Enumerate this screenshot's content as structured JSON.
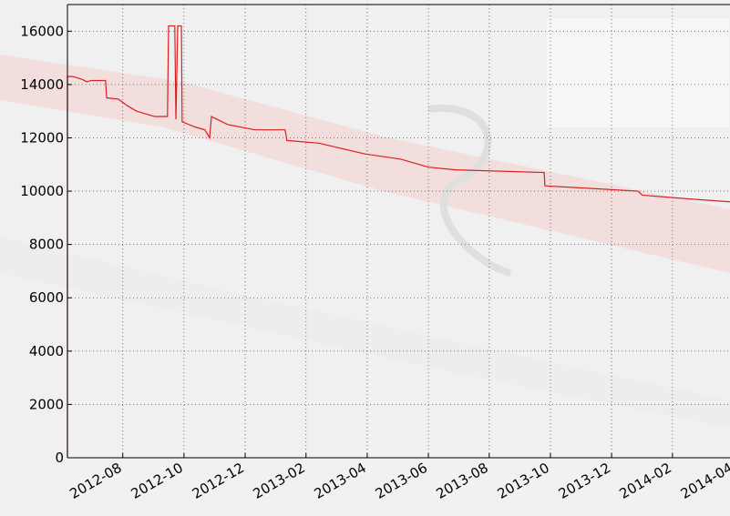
{
  "chart_data": {
    "type": "line",
    "x": [
      2012.432,
      2012.432,
      2012.447,
      2012.471,
      2012.486,
      2012.496,
      2012.536,
      2012.539,
      2012.571,
      2012.596,
      2012.621,
      2012.67,
      2012.705,
      2012.708,
      2012.725,
      2012.728,
      2012.733,
      2012.743,
      2012.745,
      2012.782,
      2012.807,
      2012.82,
      2012.825,
      2012.869,
      2012.944,
      2013.026,
      2013.031,
      2013.118,
      2013.243,
      2013.342,
      2013.417,
      2013.491,
      2013.733,
      2013.735,
      2013.864,
      2013.989,
      2014.001,
      2014.138,
      2014.24
    ],
    "series": [
      {
        "name": "value",
        "color": "#d62020",
        "values": [
          0,
          14300,
          14300,
          14200,
          14100,
          14150,
          14150,
          13500,
          13450,
          13200,
          13000,
          12800,
          12800,
          16200,
          16200,
          12700,
          16200,
          16200,
          12600,
          12400,
          12300,
          12000,
          12800,
          12500,
          12300,
          12300,
          11900,
          11800,
          11400,
          11200,
          10900,
          10800,
          10700,
          10200,
          10100,
          10000,
          9850,
          9700,
          9600
        ]
      }
    ],
    "xlim": [
      2012.432,
      2014.25
    ],
    "xticks": [
      {
        "value": 2012.583,
        "label": "2012-08"
      },
      {
        "value": 2012.75,
        "label": "2012-10"
      },
      {
        "value": 2012.917,
        "label": "2012-12"
      },
      {
        "value": 2013.083,
        "label": "2013-02"
      },
      {
        "value": 2013.25,
        "label": "2013-04"
      },
      {
        "value": 2013.417,
        "label": "2013-06"
      },
      {
        "value": 2013.583,
        "label": "2013-08"
      },
      {
        "value": 2013.75,
        "label": "2013-10"
      },
      {
        "value": 2013.917,
        "label": "2013-12"
      },
      {
        "value": 2014.083,
        "label": "2014-02"
      },
      {
        "value": 2014.25,
        "label": "2014-04"
      }
    ],
    "ylim": [
      0,
      17000
    ],
    "yticks": [
      0,
      2000,
      4000,
      6000,
      8000,
      10000,
      12000,
      14000,
      16000
    ],
    "grid": true
  }
}
